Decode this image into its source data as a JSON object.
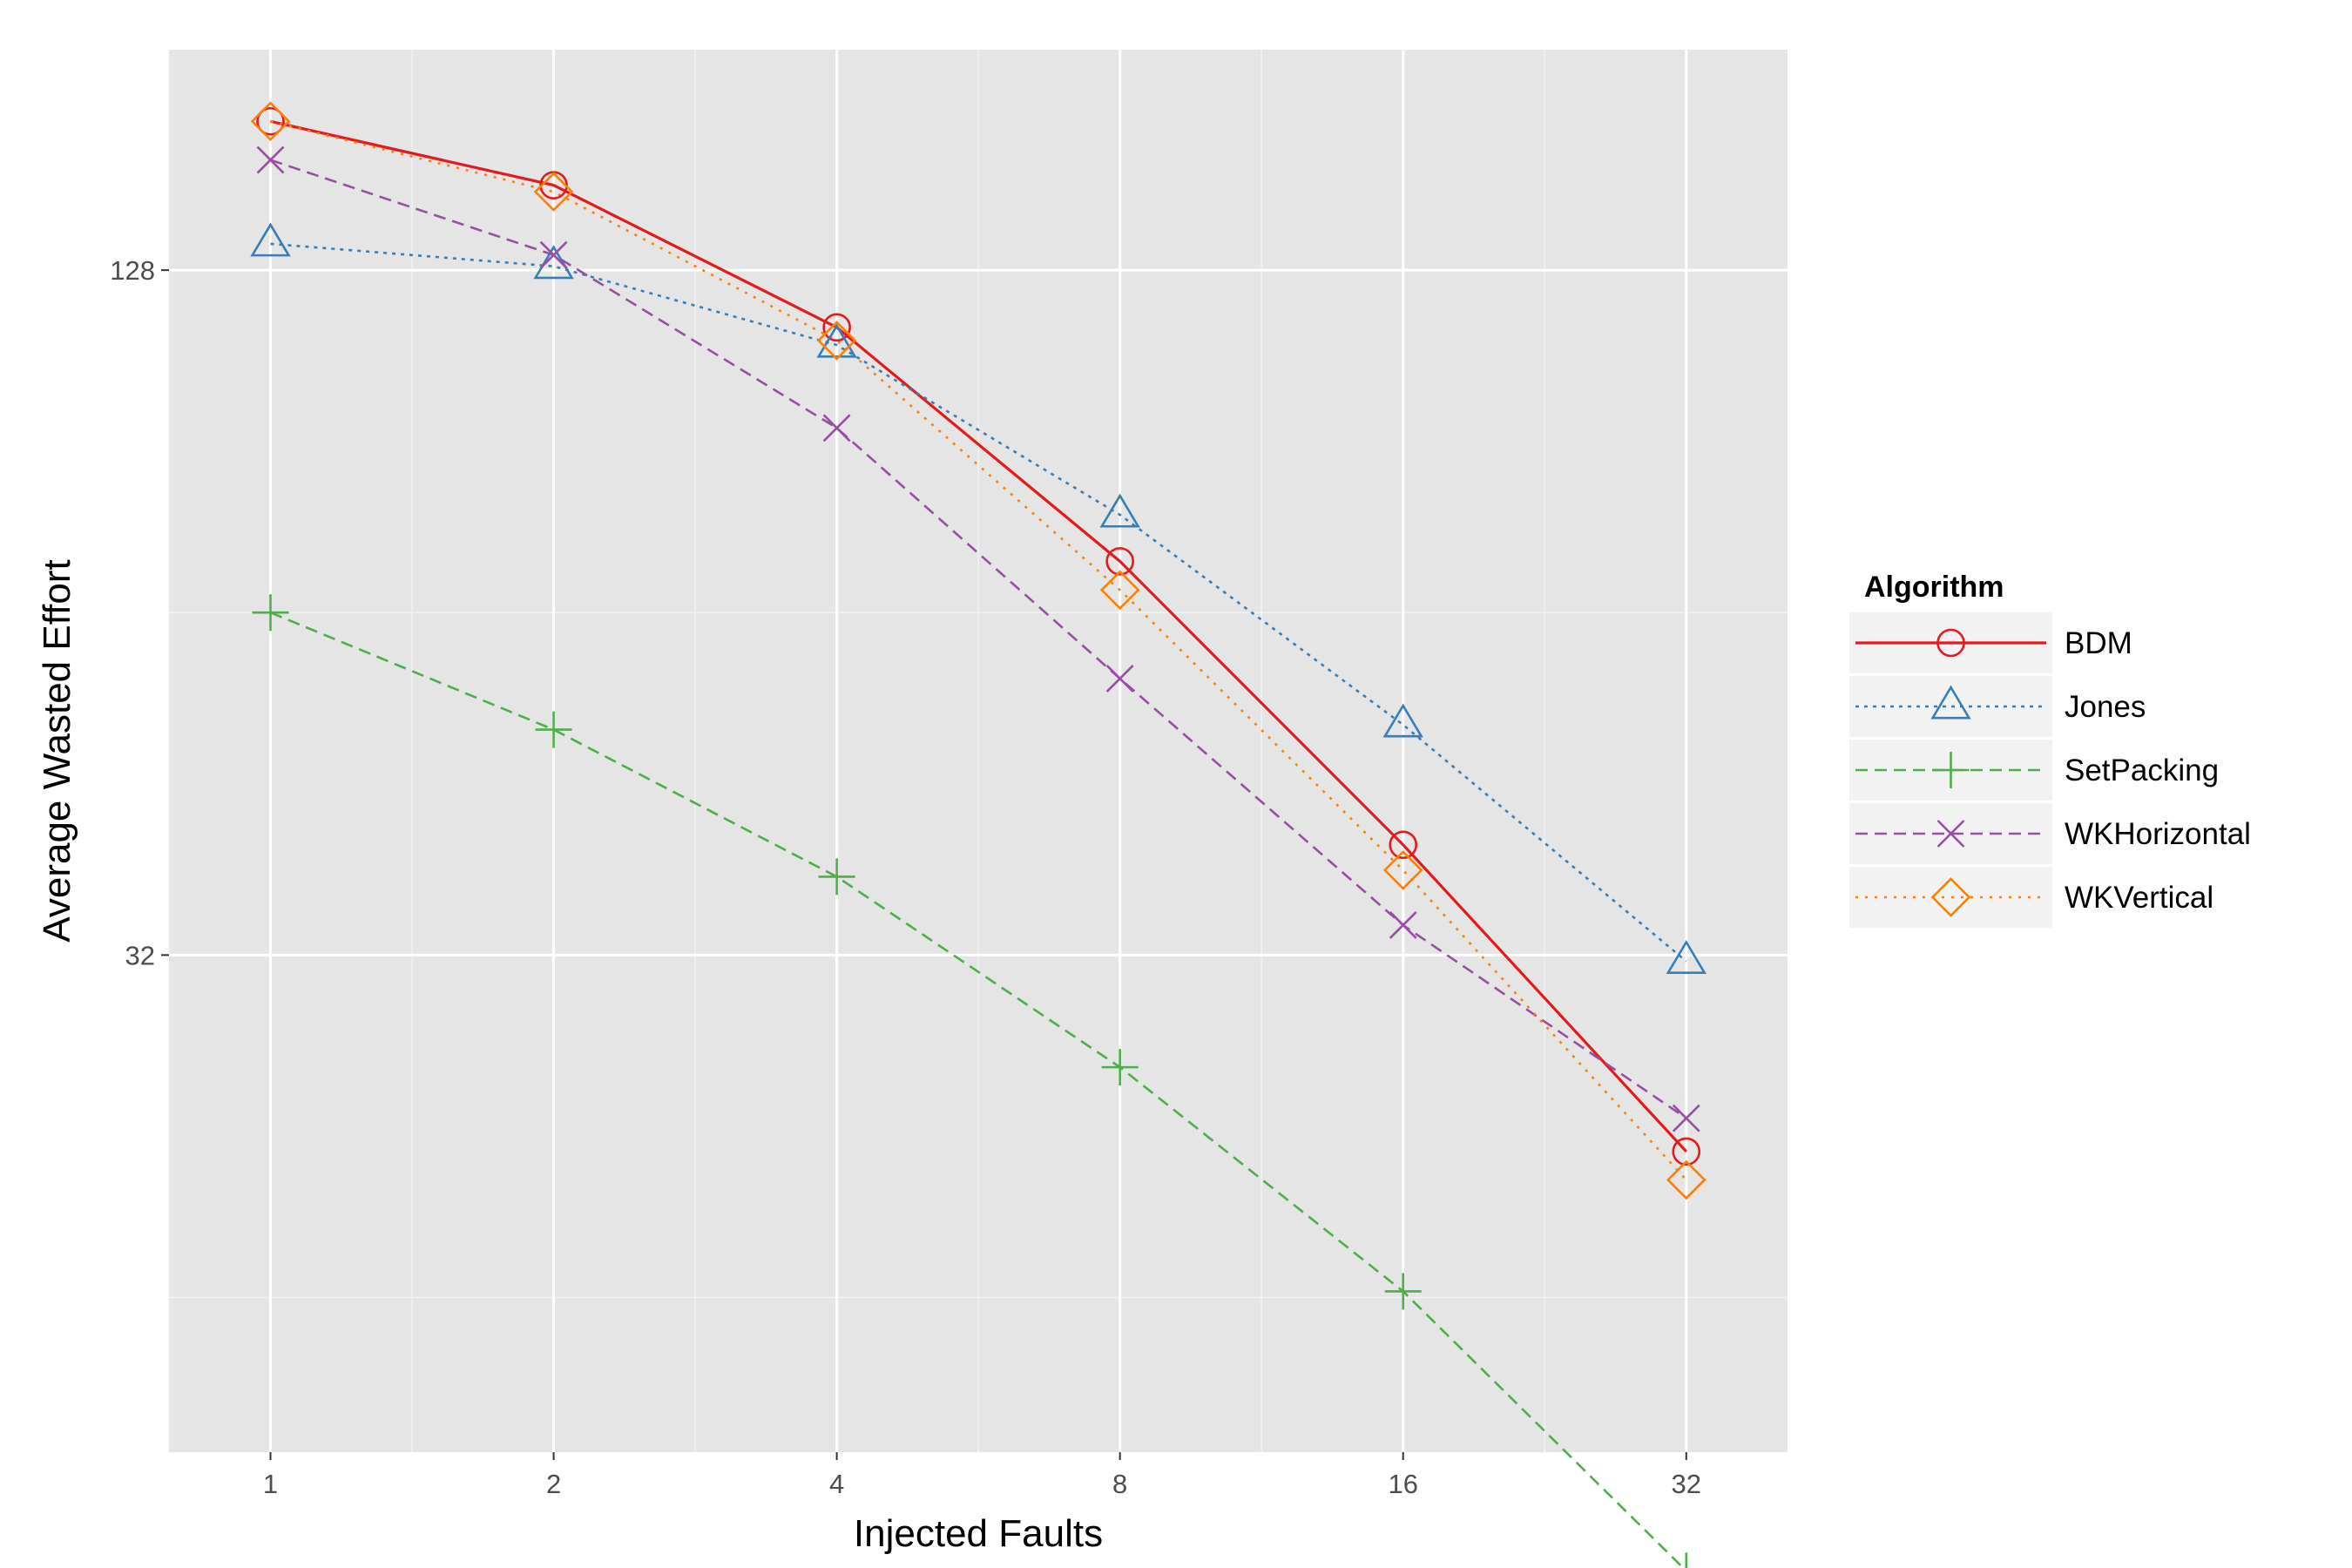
{
  "chart_data": {
    "type": "line",
    "title": "",
    "xlabel": "Injected Faults",
    "ylabel": "Average Wasted Effort",
    "x_scale": "log2",
    "y_scale": "log2",
    "x": [
      1,
      2,
      4,
      8,
      16,
      32
    ],
    "x_tick_labels": [
      "1",
      "2",
      "4",
      "8",
      "16",
      "32"
    ],
    "y_ticks": [
      32,
      128
    ],
    "y_tick_labels": [
      "32",
      "128"
    ],
    "xlim": [
      0.78,
      41
    ],
    "ylim": [
      11.7,
      200
    ],
    "grid": true,
    "panel_background": "#e5e5e5",
    "legend": {
      "title": "Algorithm",
      "position": "right"
    },
    "series": [
      {
        "name": "BDM",
        "color": "#e41a1c",
        "dash": "solid",
        "marker": "circle",
        "values": [
          173,
          152,
          114,
          71,
          40,
          21.5
        ]
      },
      {
        "name": "Jones",
        "color": "#377eb8",
        "dash": "short-dot",
        "marker": "triangle",
        "values": [
          135,
          129,
          110,
          78,
          51,
          31.6
        ]
      },
      {
        "name": "SetPacking",
        "color": "#4daf4a",
        "dash": "dashed",
        "marker": "plus",
        "values": [
          64,
          50.5,
          37.5,
          25.5,
          16.2,
          9.2
        ]
      },
      {
        "name": "WKHorizontal",
        "color": "#984ea3",
        "dash": "dashed",
        "marker": "cross",
        "values": [
          160,
          132,
          93,
          56,
          34,
          23
        ]
      },
      {
        "name": "WKVertical",
        "color": "#ff7f00",
        "dash": "dotted",
        "marker": "diamond",
        "values": [
          173,
          150,
          111,
          67,
          38,
          20.3
        ]
      }
    ]
  }
}
